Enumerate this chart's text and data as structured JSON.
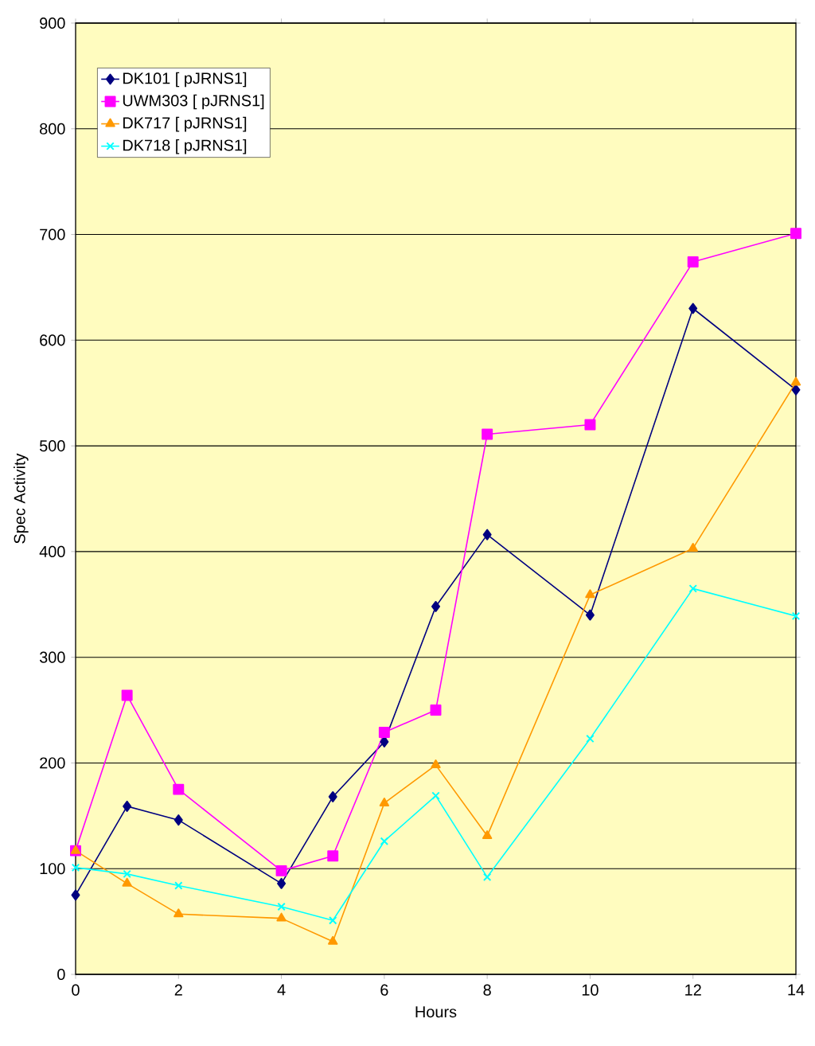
{
  "chart_data": {
    "type": "line",
    "xlabel": "Hours",
    "ylabel": "Spec Activity",
    "x": [
      0,
      1,
      2,
      4,
      5,
      6,
      7,
      8,
      10,
      12,
      14
    ],
    "series": [
      {
        "name": "DK101 [ pJRNS1]",
        "color": "#000080",
        "marker": "diamond",
        "values": [
          75,
          159,
          146,
          86,
          168,
          220,
          348,
          416,
          340,
          630,
          553
        ]
      },
      {
        "name": "UWM303 [ pJRNS1]",
        "color": "#ff00ff",
        "marker": "square",
        "values": [
          117,
          264,
          175,
          98,
          112,
          229,
          250,
          511,
          520,
          674,
          701
        ]
      },
      {
        "name": "DK717 [ pJRNS1]",
        "color": "#ff9900",
        "marker": "triangle",
        "values": [
          117,
          86,
          57,
          53,
          31,
          162,
          198,
          131,
          359,
          403,
          560
        ]
      },
      {
        "name": "DK718 [ pJRNS1]",
        "color": "#00ffff",
        "marker": "cross",
        "values": [
          101,
          95,
          84,
          64,
          51,
          126,
          169,
          92,
          223,
          365,
          339
        ]
      }
    ],
    "xlim": [
      0,
      14
    ],
    "xticks": [
      0,
      2,
      4,
      6,
      8,
      10,
      12,
      14
    ],
    "ylim": [
      0,
      900
    ],
    "yticks": [
      0,
      100,
      200,
      300,
      400,
      500,
      600,
      700,
      800,
      900
    ],
    "grid": "y",
    "legend": "top left",
    "line_style": "solid"
  }
}
